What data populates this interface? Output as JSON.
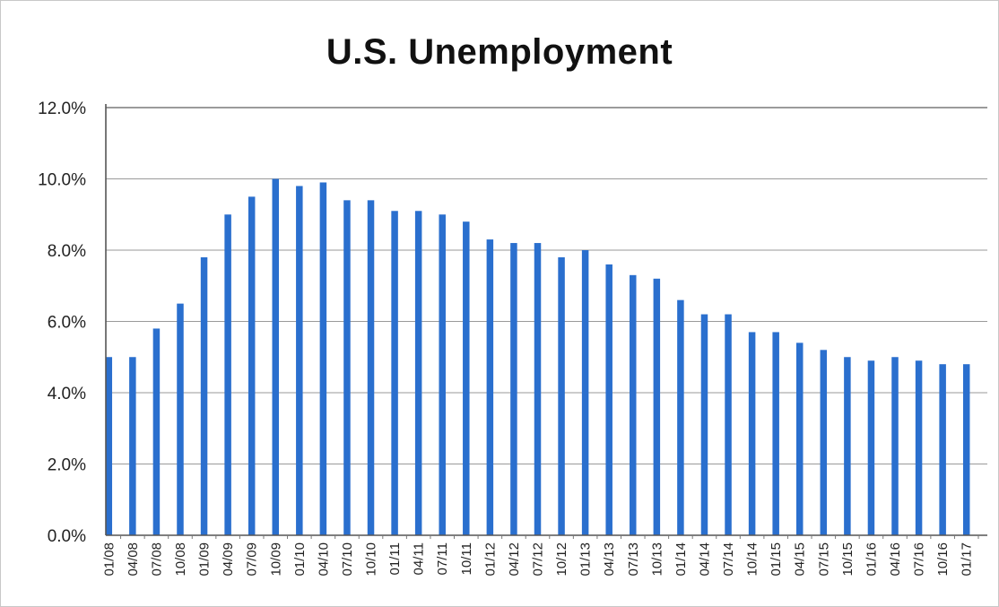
{
  "chart_data": {
    "type": "bar",
    "title": "U.S. Unemployment",
    "xlabel": "",
    "ylabel": "",
    "ylim": [
      0,
      12
    ],
    "y_ticks": [
      "0.0%",
      "2.0%",
      "4.0%",
      "6.0%",
      "8.0%",
      "10.0%",
      "12.0%"
    ],
    "grid": true,
    "legend": "none",
    "bar_color": "#2a6fce",
    "categories": [
      "01/08",
      "04/08",
      "07/08",
      "10/08",
      "01/09",
      "04/09",
      "07/09",
      "10/09",
      "01/10",
      "04/10",
      "07/10",
      "10/10",
      "01/11",
      "04/11",
      "07/11",
      "10/11",
      "01/12",
      "04/12",
      "07/12",
      "10/12",
      "01/13",
      "04/13",
      "07/13",
      "10/13",
      "01/14",
      "04/14",
      "07/14",
      "10/14",
      "01/15",
      "04/15",
      "07/15",
      "10/15",
      "01/16",
      "04/16",
      "07/16",
      "10/16",
      "01/17"
    ],
    "series": [
      {
        "values": [
          5.0,
          5.0,
          5.8,
          6.5,
          7.8,
          9.0,
          9.5,
          10.0,
          9.8,
          9.9,
          9.4,
          9.4,
          9.1,
          9.1,
          9.0,
          8.8,
          8.3,
          8.2,
          8.2,
          7.8,
          8.0,
          7.6,
          7.3,
          7.2,
          6.6,
          6.2,
          6.2,
          5.7,
          5.7,
          5.4,
          5.2,
          5.0,
          4.9,
          5.0,
          4.9,
          4.8,
          4.8
        ]
      }
    ]
  }
}
